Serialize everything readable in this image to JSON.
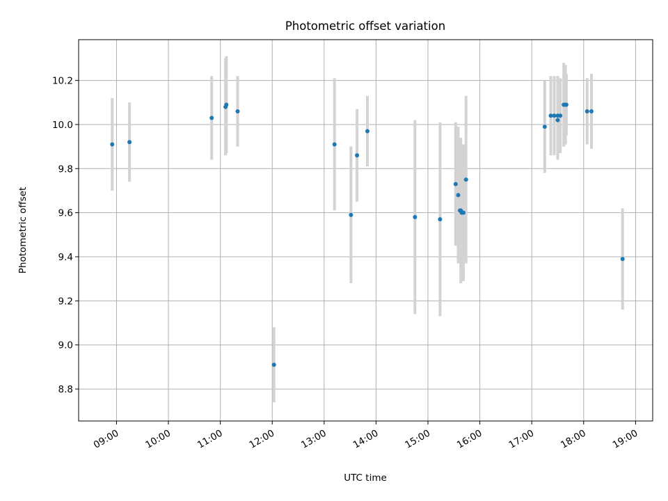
{
  "chart_data": {
    "type": "scatter",
    "title": "Photometric offset variation",
    "xlabel": "UTC time",
    "ylabel": "Photometric offset",
    "x_axis": {
      "unit": "hours UTC",
      "range": [
        8.27,
        19.33
      ],
      "ticks": [
        9,
        10,
        11,
        12,
        13,
        14,
        15,
        16,
        17,
        18,
        19
      ],
      "tick_labels": [
        "09:00",
        "10:00",
        "11:00",
        "12:00",
        "13:00",
        "14:00",
        "15:00",
        "16:00",
        "17:00",
        "18:00",
        "19:00"
      ]
    },
    "y_axis": {
      "range": [
        8.655,
        10.385
      ],
      "ticks": [
        8.8,
        9.0,
        9.2,
        9.4,
        9.6,
        9.8,
        10.0,
        10.2
      ],
      "tick_labels": [
        "8.8",
        "9.0",
        "9.2",
        "9.4",
        "9.6",
        "9.8",
        "10.0",
        "10.2"
      ]
    },
    "grid": true,
    "marker_color": "#1f77b4",
    "errorbar_color": "#d3d3d3",
    "points": [
      {
        "time": "08:55",
        "y": 9.91,
        "err": 0.21
      },
      {
        "time": "09:15",
        "y": 9.92,
        "err": 0.18
      },
      {
        "time": "10:50",
        "y": 10.03,
        "err": 0.19
      },
      {
        "time": "11:06",
        "y": 10.08,
        "err": 0.22
      },
      {
        "time": "11:07",
        "y": 10.09,
        "err": 0.22
      },
      {
        "time": "11:20",
        "y": 10.06,
        "err": 0.16
      },
      {
        "time": "12:02",
        "y": 8.91,
        "err": 0.17
      },
      {
        "time": "13:12",
        "y": 9.91,
        "err": 0.3
      },
      {
        "time": "13:31",
        "y": 9.59,
        "err": 0.31
      },
      {
        "time": "13:38",
        "y": 9.86,
        "err": 0.21
      },
      {
        "time": "13:50",
        "y": 9.97,
        "err": 0.16
      },
      {
        "time": "14:45",
        "y": 9.58,
        "err": 0.44
      },
      {
        "time": "15:14",
        "y": 9.57,
        "err": 0.44
      },
      {
        "time": "15:32",
        "y": 9.73,
        "err": 0.28
      },
      {
        "time": "15:35",
        "y": 9.68,
        "err": 0.31
      },
      {
        "time": "15:37",
        "y": 9.61,
        "err": 0.24
      },
      {
        "time": "15:38",
        "y": 9.61,
        "err": 0.33
      },
      {
        "time": "15:39",
        "y": 9.6,
        "err": 0.31
      },
      {
        "time": "15:41",
        "y": 9.6,
        "err": 0.31
      },
      {
        "time": "15:44",
        "y": 9.75,
        "err": 0.38
      },
      {
        "time": "17:15",
        "y": 9.99,
        "err": 0.21
      },
      {
        "time": "17:22",
        "y": 10.04,
        "err": 0.18
      },
      {
        "time": "17:26",
        "y": 10.04,
        "err": 0.18
      },
      {
        "time": "17:30",
        "y": 10.04,
        "err": 0.18
      },
      {
        "time": "17:30",
        "y": 10.02,
        "err": 0.18
      },
      {
        "time": "17:33",
        "y": 10.04,
        "err": 0.17
      },
      {
        "time": "17:37",
        "y": 10.09,
        "err": 0.19
      },
      {
        "time": "17:39",
        "y": 10.09,
        "err": 0.18
      },
      {
        "time": "17:40",
        "y": 10.09,
        "err": 0.14
      },
      {
        "time": "18:04",
        "y": 10.06,
        "err": 0.15
      },
      {
        "time": "18:09",
        "y": 10.06,
        "err": 0.17
      },
      {
        "time": "18:45",
        "y": 9.39,
        "err": 0.23
      }
    ]
  }
}
